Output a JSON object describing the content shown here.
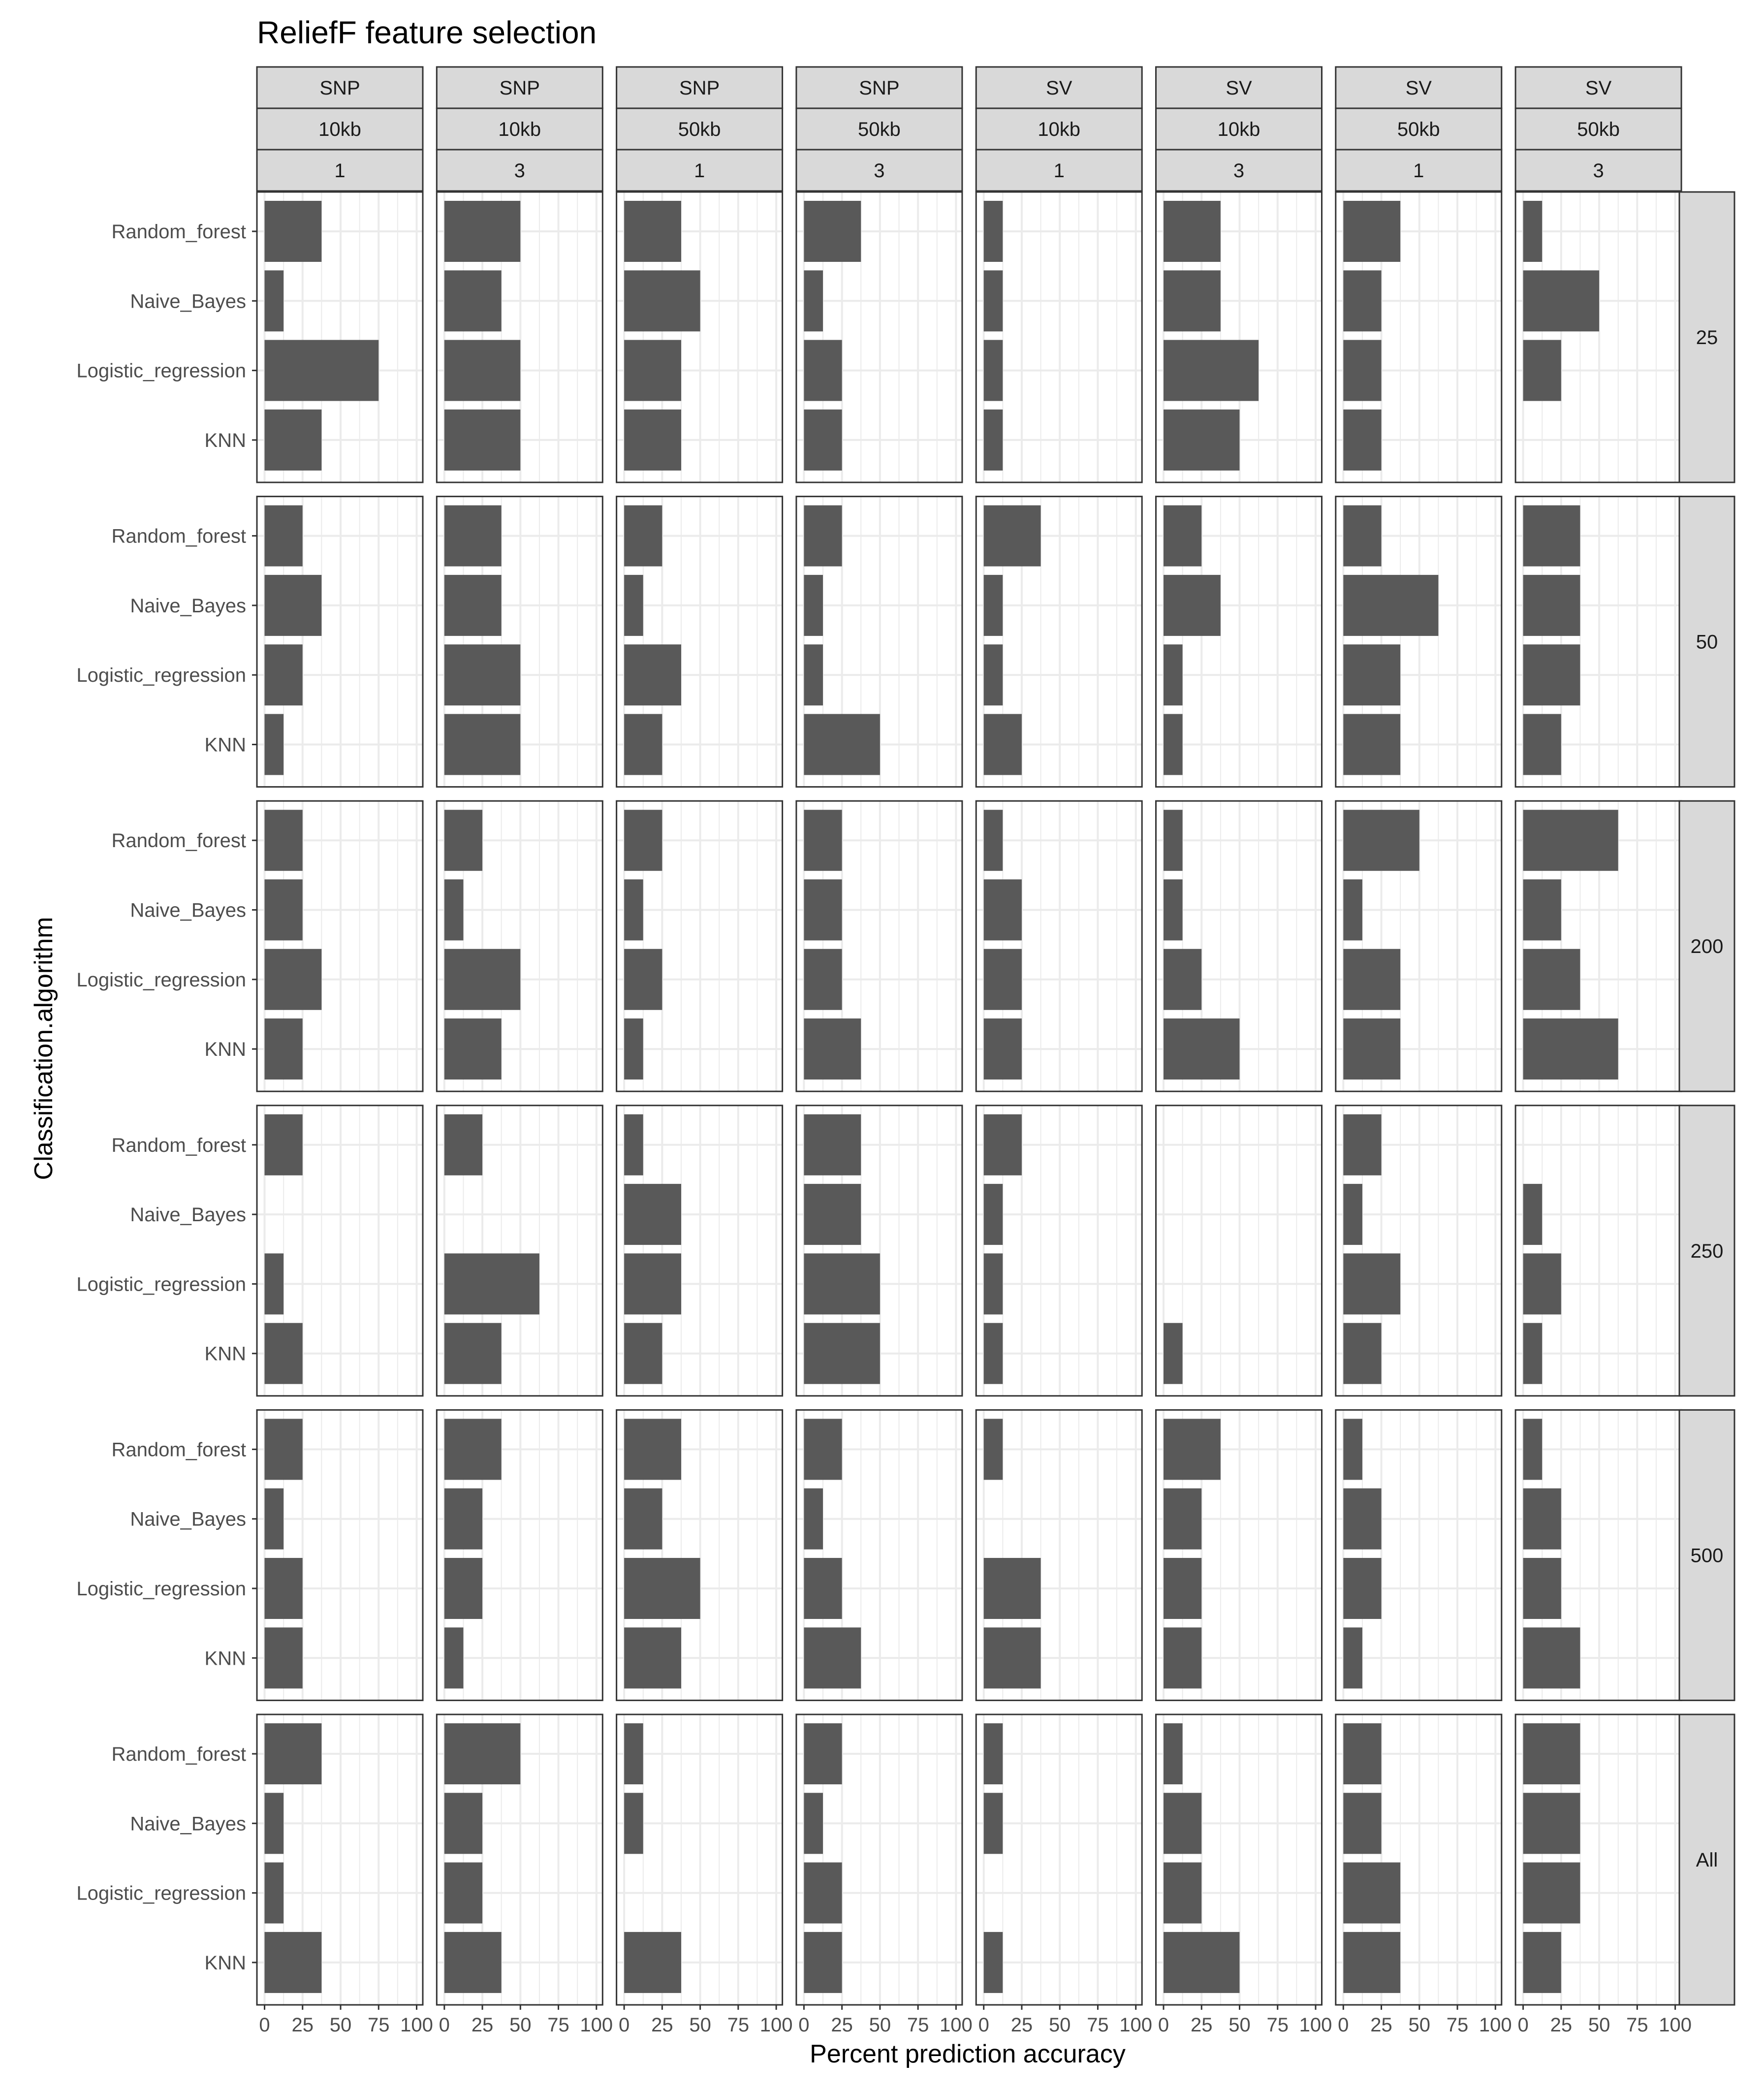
{
  "chart_data": {
    "type": "bar",
    "orientation": "horizontal",
    "title": "ReliefF feature selection",
    "xlabel": "Percent prediction accuracy",
    "ylabel": "Classification.algorithm",
    "xlim": [
      0,
      100
    ],
    "xticks": [
      0,
      25,
      50,
      75,
      100
    ],
    "xtick_labels": [
      "0",
      "25",
      "50",
      "75",
      "100"
    ],
    "categories": [
      "Random_forest",
      "Naive_Bayes",
      "Logistic_regression",
      "KNN"
    ],
    "bar_color": "#595959",
    "strip_color": "#d9d9d9",
    "columns": [
      {
        "variant": "SNP",
        "window": "10kb",
        "rep": "1"
      },
      {
        "variant": "SNP",
        "window": "10kb",
        "rep": "3"
      },
      {
        "variant": "SNP",
        "window": "50kb",
        "rep": "1"
      },
      {
        "variant": "SNP",
        "window": "50kb",
        "rep": "3"
      },
      {
        "variant": "SV",
        "window": "10kb",
        "rep": "1"
      },
      {
        "variant": "SV",
        "window": "10kb",
        "rep": "3"
      },
      {
        "variant": "SV",
        "window": "50kb",
        "rep": "1"
      },
      {
        "variant": "SV",
        "window": "50kb",
        "rep": "3"
      }
    ],
    "rows": [
      {
        "label": "25",
        "values": [
          [
            37.5,
            12.5,
            75,
            37.5
          ],
          [
            50,
            37.5,
            50,
            50
          ],
          [
            37.5,
            50,
            37.5,
            37.5
          ],
          [
            37.5,
            12.5,
            25,
            25
          ],
          [
            12.5,
            12.5,
            12.5,
            12.5
          ],
          [
            37.5,
            37.5,
            62.5,
            50
          ],
          [
            37.5,
            25,
            25,
            25
          ],
          [
            12.5,
            50,
            25,
            0
          ]
        ]
      },
      {
        "label": "50",
        "values": [
          [
            25,
            37.5,
            25,
            12.5
          ],
          [
            37.5,
            37.5,
            50,
            50
          ],
          [
            25,
            12.5,
            37.5,
            25
          ],
          [
            25,
            12.5,
            12.5,
            50
          ],
          [
            37.5,
            12.5,
            12.5,
            25
          ],
          [
            25,
            37.5,
            12.5,
            12.5
          ],
          [
            25,
            62.5,
            37.5,
            37.5
          ],
          [
            37.5,
            37.5,
            37.5,
            25
          ]
        ]
      },
      {
        "label": "200",
        "values": [
          [
            25,
            25,
            37.5,
            25
          ],
          [
            25,
            12.5,
            50,
            37.5
          ],
          [
            25,
            12.5,
            25,
            12.5
          ],
          [
            25,
            25,
            25,
            37.5
          ],
          [
            12.5,
            25,
            25,
            25
          ],
          [
            12.5,
            12.5,
            25,
            50
          ],
          [
            50,
            12.5,
            37.5,
            37.5
          ],
          [
            62.5,
            25,
            37.5,
            62.5
          ]
        ]
      },
      {
        "label": "250",
        "values": [
          [
            25,
            0,
            12.5,
            25
          ],
          [
            25,
            0,
            62.5,
            37.5
          ],
          [
            12.5,
            37.5,
            37.5,
            25
          ],
          [
            37.5,
            37.5,
            50,
            50
          ],
          [
            25,
            12.5,
            12.5,
            12.5
          ],
          [
            0,
            0,
            0,
            12.5
          ],
          [
            25,
            12.5,
            37.5,
            25
          ],
          [
            0,
            12.5,
            25,
            12.5
          ]
        ]
      },
      {
        "label": "500",
        "values": [
          [
            25,
            12.5,
            25,
            25
          ],
          [
            37.5,
            25,
            25,
            12.5
          ],
          [
            37.5,
            25,
            50,
            37.5
          ],
          [
            25,
            12.5,
            25,
            37.5
          ],
          [
            12.5,
            0,
            37.5,
            37.5
          ],
          [
            37.5,
            25,
            25,
            25
          ],
          [
            12.5,
            25,
            25,
            12.5
          ],
          [
            12.5,
            25,
            25,
            37.5
          ]
        ]
      },
      {
        "label": "All",
        "values": [
          [
            37.5,
            12.5,
            12.5,
            37.5
          ],
          [
            50,
            25,
            25,
            37.5
          ],
          [
            12.5,
            12.5,
            0,
            37.5
          ],
          [
            25,
            12.5,
            25,
            25
          ],
          [
            12.5,
            12.5,
            0,
            12.5
          ],
          [
            12.5,
            25,
            25,
            50
          ],
          [
            25,
            25,
            37.5,
            37.5
          ],
          [
            37.5,
            37.5,
            37.5,
            25
          ]
        ]
      }
    ]
  }
}
